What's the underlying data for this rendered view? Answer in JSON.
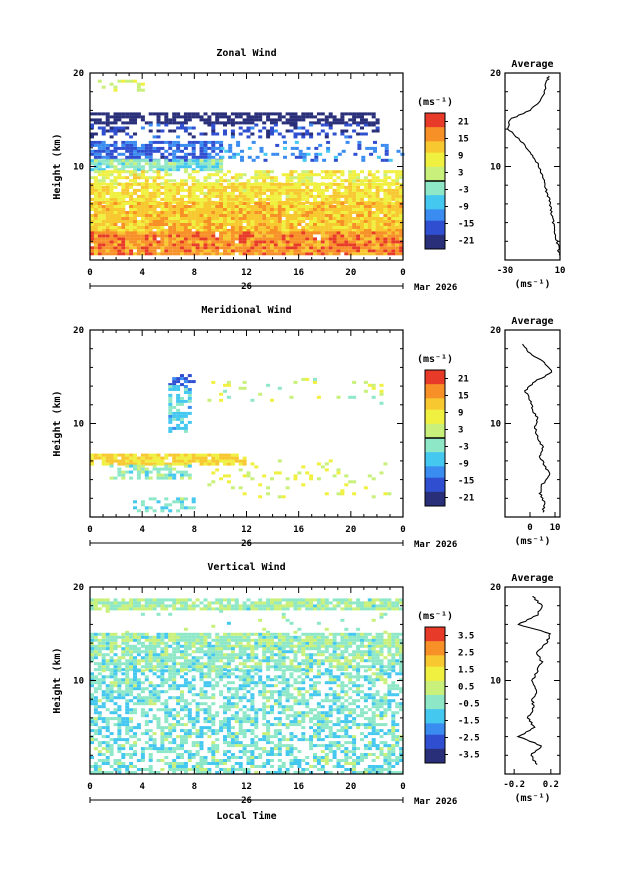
{
  "figure": {
    "xlabel_bottom": "Local Time",
    "date_label": "Mar 2026",
    "day_label": "26",
    "x_ticks": [
      "0",
      "4",
      "8",
      "12",
      "16",
      "20",
      "0"
    ],
    "y_label": "Height (km)",
    "y_ticks": [
      "10",
      "20"
    ],
    "units": "(ms⁻¹)",
    "avg_title": "Average",
    "avg_units": "(ms⁻¹)"
  },
  "colormap": [
    "#2a2f7a",
    "#2f4fd0",
    "#3a8cf0",
    "#45c8f0",
    "#8ee8c8",
    "#c8f07a",
    "#f0f040",
    "#f8c830",
    "#f89028",
    "#e83a28"
  ],
  "chart_data": [
    {
      "type": "heatmap",
      "title": "Zonal Wind",
      "xlabel": "",
      "ylabel": "Height (km)",
      "xlim": [
        0,
        24
      ],
      "ylim": [
        0,
        20
      ],
      "colorbar_ticks": [
        "21",
        "15",
        "9",
        "3",
        "-3",
        "-9",
        "-15",
        "-21"
      ],
      "colorbar_range": [
        -24,
        24
      ],
      "layers": [
        {
          "h": [
            18,
            19
          ],
          "t": [
            0,
            4
          ],
          "v": 4,
          "cover": 0.3
        },
        {
          "h": [
            14.5,
            15.5
          ],
          "t": [
            0,
            22
          ],
          "v": -24,
          "cover": 0.7
        },
        {
          "h": [
            13,
            14.5
          ],
          "t": [
            0,
            22
          ],
          "v": -18,
          "cover": 0.35
        },
        {
          "h": [
            10.5,
            12.5
          ],
          "t": [
            0,
            10
          ],
          "v": -15,
          "cover": 0.75
        },
        {
          "h": [
            10.5,
            12.5
          ],
          "t": [
            10,
            24
          ],
          "v": -12,
          "cover": 0.25
        },
        {
          "h": [
            9.5,
            10.5
          ],
          "t": [
            0,
            10
          ],
          "v": -3,
          "cover": 0.8
        },
        {
          "h": [
            8,
            9.5
          ],
          "t": [
            0,
            24
          ],
          "v": 6,
          "cover": 0.65
        },
        {
          "h": [
            6,
            8
          ],
          "t": [
            0,
            24
          ],
          "v": 9,
          "cover": 0.9
        },
        {
          "h": [
            3,
            6
          ],
          "t": [
            0,
            24
          ],
          "v": 12,
          "cover": 0.97
        },
        {
          "h": [
            0.5,
            3
          ],
          "t": [
            0,
            24
          ],
          "v": 17,
          "cover": 0.98
        }
      ],
      "average": {
        "xlim": [
          -30,
          10
        ],
        "x_ticks": [
          "-30",
          "10"
        ],
        "height": [
          0.5,
          1,
          2,
          3,
          4,
          5,
          6,
          7,
          8,
          9,
          10,
          11,
          12,
          13,
          14,
          15,
          16,
          17,
          18,
          19,
          19.7
        ],
        "value": [
          10,
          9,
          8,
          6,
          5,
          4,
          3,
          1,
          -1,
          -3,
          -5,
          -9,
          -14,
          -20,
          -28,
          -27,
          -12,
          -4,
          -1,
          0,
          2
        ]
      }
    },
    {
      "type": "heatmap",
      "title": "Meridional Wind",
      "xlabel": "",
      "ylabel": "Height (km)",
      "xlim": [
        0,
        24
      ],
      "ylim": [
        0,
        20
      ],
      "colorbar_ticks": [
        "21",
        "15",
        "9",
        "3",
        "-3",
        "-9",
        "-15",
        "-21"
      ],
      "colorbar_range": [
        -24,
        24
      ],
      "layers": [
        {
          "h": [
            14,
            15
          ],
          "t": [
            6,
            8
          ],
          "v": -15,
          "cover": 0.5
        },
        {
          "h": [
            9,
            14
          ],
          "t": [
            6,
            7.5
          ],
          "v": -6,
          "cover": 0.6
        },
        {
          "h": [
            5.5,
            6.5
          ],
          "t": [
            0,
            12
          ],
          "v": 10,
          "cover": 0.9
        },
        {
          "h": [
            4,
            5.5
          ],
          "t": [
            1.5,
            7.5
          ],
          "v": -2,
          "cover": 0.6
        },
        {
          "h": [
            2,
            6
          ],
          "t": [
            9,
            23
          ],
          "v": 5,
          "cover": 0.12
        },
        {
          "h": [
            12,
            15
          ],
          "t": [
            9,
            23
          ],
          "v": 3,
          "cover": 0.05
        },
        {
          "h": [
            0.5,
            2
          ],
          "t": [
            3,
            8
          ],
          "v": -4,
          "cover": 0.4
        }
      ],
      "average": {
        "xlim": [
          -10,
          12
        ],
        "x_ticks": [
          "0",
          "10"
        ],
        "height": [
          0.5,
          1.5,
          2.5,
          3.5,
          4.5,
          5.5,
          6.5,
          7.5,
          8.5,
          9.5,
          10.5,
          11.5,
          12.5,
          13.5,
          14.5,
          15.5,
          16.5,
          17.5,
          18.5
        ],
        "value": [
          5,
          6,
          4,
          5,
          8,
          6,
          4,
          5,
          3,
          2,
          3,
          1,
          0,
          -2,
          2,
          9,
          6,
          0,
          -3
        ]
      }
    },
    {
      "type": "heatmap",
      "title": "Vertical Wind",
      "xlabel": "Local Time",
      "ylabel": "Height (km)",
      "xlim": [
        0,
        24
      ],
      "ylim": [
        0,
        20
      ],
      "colorbar_ticks": [
        "3.5",
        "2.5",
        "1.5",
        "0.5",
        "-0.5",
        "-1.5",
        "-2.5",
        "-3.5"
      ],
      "colorbar_range": [
        -4,
        4
      ],
      "layers": [
        {
          "h": [
            17.5,
            18.5
          ],
          "t": [
            0,
            24
          ],
          "v": -0.1,
          "cover": 0.85
        },
        {
          "h": [
            15,
            17.5
          ],
          "t": [
            0,
            24
          ],
          "v": -0.2,
          "cover": 0.05
        },
        {
          "h": [
            13.5,
            15
          ],
          "t": [
            0,
            24
          ],
          "v": -0.2,
          "cover": 0.9
        },
        {
          "h": [
            11,
            13.5
          ],
          "t": [
            0,
            24
          ],
          "v": -0.3,
          "cover": 0.75
        },
        {
          "h": [
            0,
            11
          ],
          "t": [
            0,
            24
          ],
          "v": -0.6,
          "cover": 0.55
        }
      ],
      "average": {
        "xlim": [
          -0.3,
          0.3
        ],
        "x_ticks": [
          "-0.2",
          "0.2"
        ],
        "height": [
          1,
          2,
          3,
          4,
          5,
          6,
          7,
          8,
          9,
          10,
          11,
          12,
          13,
          14,
          15,
          16,
          17,
          18,
          19
        ],
        "value": [
          0.05,
          -0.02,
          0.1,
          -0.15,
          0.02,
          -0.05,
          0.01,
          0.0,
          0.05,
          0.0,
          0.05,
          0.1,
          0.05,
          0.15,
          0.2,
          -0.15,
          0.05,
          0.1,
          0.0
        ]
      }
    }
  ]
}
